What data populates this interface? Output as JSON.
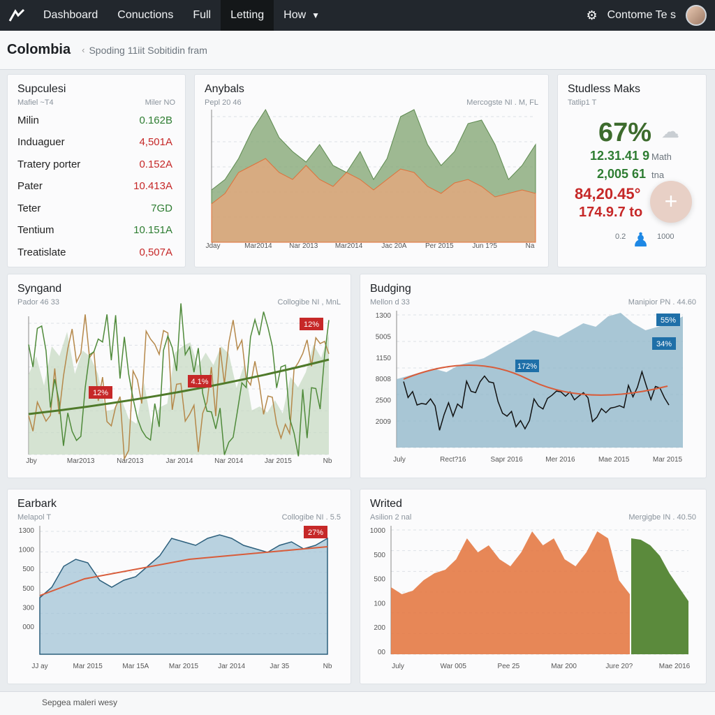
{
  "nav": {
    "items": [
      "Dashboard",
      "Conuctions",
      "Full",
      "Letting",
      "How"
    ],
    "user": "Contome Te s"
  },
  "header": {
    "title": "Colombia",
    "breadcrumb": "Spoding 11iit Sobitidin fram"
  },
  "summary": {
    "title": "Supculesi",
    "sub": "Mafiel ~T4",
    "meta": "Miler NO",
    "rows": [
      {
        "label": "Milin",
        "value": "0.162B",
        "tone": "green"
      },
      {
        "label": "Induaguer",
        "value": "4,501A",
        "tone": "red"
      },
      {
        "label": "Tratery porter",
        "value": "0.152A",
        "tone": "red"
      },
      {
        "label": "Pater",
        "value": "10.413A",
        "tone": "red"
      },
      {
        "label": "Teter",
        "value": "7GD",
        "tone": "green"
      },
      {
        "label": "Tentium",
        "value": "10.151A",
        "tone": "green"
      },
      {
        "label": "Treatislate",
        "value": "0,507A",
        "tone": "red"
      }
    ]
  },
  "anybals": {
    "title": "Anybals",
    "sub": "Pepl 20 46",
    "meta": "Mercogste NI . M, FL",
    "xlabels": [
      "Jday",
      "Mar2014",
      "Nar 2013",
      "Mar2014",
      "Jac 20A",
      "Per 2015",
      "Jun 1?5",
      "Na"
    ]
  },
  "stats": {
    "title": "Studless Maks",
    "sub": "Tatlip1 T",
    "big": "67%",
    "lines": [
      {
        "value": "12.31.41 9",
        "tag": "Math",
        "tone": "green"
      },
      {
        "value": "2,005 61",
        "tag": "tna",
        "tone": "green"
      },
      {
        "value": "84,20.45°",
        "tag": "",
        "tone": "red"
      },
      {
        "value": "174.9.7 to",
        "tag": "",
        "tone": "red"
      }
    ],
    "figure_caption_left": "0.2",
    "figure_caption_right": "1000",
    "fab_label": "+"
  },
  "syngand": {
    "title": "Syngand",
    "sub": "Pador 46 33",
    "meta": "Collogibe NI , MnL",
    "badges": [
      "12%",
      "4.1%",
      "12%"
    ],
    "xlabels": [
      "Jby",
      "Mar2013",
      "Nar2013",
      "Jar 2014",
      "Nar 2014",
      "Jar 2015",
      "Nb"
    ]
  },
  "budging": {
    "title": "Budging",
    "sub": "Mellon d 33",
    "meta": "Manipior PN . 44.60",
    "ylabels": [
      "1300",
      "5005",
      "1150",
      "8008",
      "2500",
      "2009"
    ],
    "badges": [
      "172%",
      "55%",
      "34%"
    ],
    "xlabels": [
      "July",
      "Rect?16",
      "Sapr 2016",
      "Mer 2016",
      "Mae 2015",
      "Mar 2015"
    ]
  },
  "earbark": {
    "title": "Earbark",
    "sub": "Melapol T",
    "meta": "Collogibe NI . 5.5",
    "ylabels": [
      "1300",
      "1000",
      "500",
      "500",
      "300",
      "000"
    ],
    "badges": [
      "27%"
    ],
    "xlabels": [
      "JJ ay",
      "Mar 2015",
      "Mar 15A",
      "Mar 2015",
      "Jar 2014",
      "Jar 35",
      "Nb"
    ]
  },
  "writed": {
    "title": "Writed",
    "sub": "Asilion 2 nal",
    "meta": "Mergigbe IN . 40.50",
    "ylabels": [
      "1000",
      "500",
      "500",
      "100",
      "200",
      "00"
    ],
    "xlabels": [
      "July",
      "War 005",
      "Pee 25",
      "Mar 200",
      "Jure 20?",
      "Mae 2016"
    ]
  },
  "footer": {
    "text": "Sepgea maleri wesy"
  },
  "colors": {
    "green": "#5d8a4f",
    "orange": "#e0703a",
    "blue": "#7fa7bd",
    "red": "#c62828",
    "navy": "#22272d"
  }
}
